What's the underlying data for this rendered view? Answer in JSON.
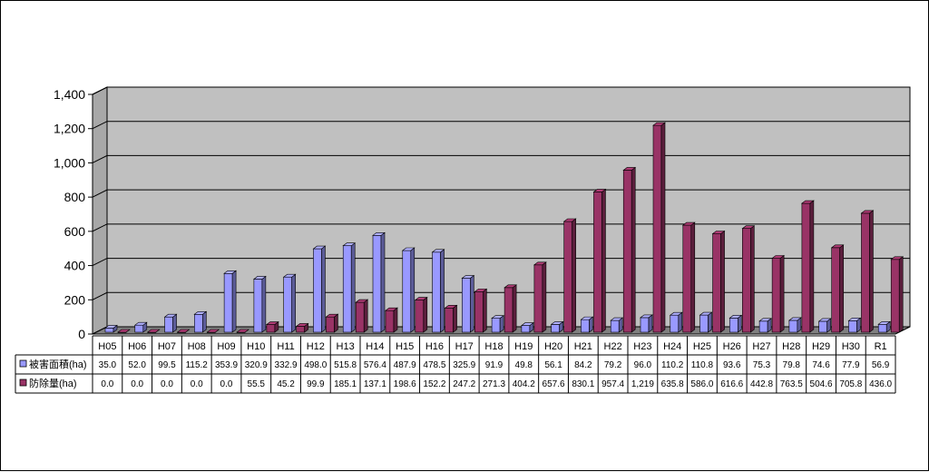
{
  "chart_data": {
    "type": "bar",
    "title": "",
    "xlabel": "",
    "ylabel": "",
    "ylim": [
      0,
      1400
    ],
    "yticks": [
      0,
      200,
      400,
      600,
      800,
      1000,
      1200,
      1400
    ],
    "ytick_labels": [
      "0",
      "200",
      "400",
      "600",
      "800",
      "1,000",
      "1,200",
      "1,400"
    ],
    "grid": true,
    "legend": "data-table-left",
    "categories": [
      "H05",
      "H06",
      "H07",
      "H08",
      "H09",
      "H10",
      "H11",
      "H12",
      "H13",
      "H14",
      "H15",
      "H16",
      "H17",
      "H18",
      "H19",
      "H20",
      "H21",
      "H22",
      "H23",
      "H24",
      "H25",
      "H26",
      "H27",
      "H28",
      "H29",
      "H30",
      "R1"
    ],
    "series": [
      {
        "name": "被害面積(ha)",
        "color": "#9999ff",
        "values": [
          35.0,
          52.0,
          99.5,
          115.2,
          353.9,
          320.9,
          332.9,
          498.0,
          515.8,
          576.4,
          487.9,
          478.5,
          325.9,
          91.9,
          49.8,
          56.1,
          84.2,
          79.2,
          96.0,
          110.2,
          110.8,
          93.6,
          75.3,
          79.8,
          74.6,
          77.9,
          56.9
        ],
        "labels": [
          "35.0",
          "52.0",
          "99.5",
          "115.2",
          "353.9",
          "320.9",
          "332.9",
          "498.0",
          "515.8",
          "576.4",
          "487.9",
          "478.5",
          "325.9",
          "91.9",
          "49.8",
          "56.1",
          "84.2",
          "79.2",
          "96.0",
          "110.2",
          "110.8",
          "93.6",
          "75.3",
          "79.8",
          "74.6",
          "77.9",
          "56.9"
        ]
      },
      {
        "name": "防除量(ha)",
        "color": "#993366",
        "values": [
          0.0,
          0.0,
          0.0,
          0.0,
          0.0,
          55.5,
          45.2,
          99.9,
          185.1,
          137.1,
          198.6,
          152.2,
          247.2,
          271.3,
          404.2,
          657.6,
          830.1,
          957.4,
          1219,
          635.8,
          586.0,
          616.6,
          442.8,
          763.5,
          504.6,
          705.8,
          436.0
        ],
        "labels": [
          "0.0",
          "0.0",
          "0.0",
          "0.0",
          "0.0",
          "55.5",
          "45.2",
          "99.9",
          "185.1",
          "137.1",
          "198.6",
          "152.2",
          "247.2",
          "271.3",
          "404.2",
          "657.6",
          "830.1",
          "957.4",
          "1,219",
          "635.8",
          "586.0",
          "616.6",
          "442.8",
          "763.5",
          "504.6",
          "705.8",
          "436.0"
        ]
      }
    ],
    "colors": {
      "plot_wall": "#c0c0c0",
      "floor": "#808080",
      "gridline": "#000000"
    }
  }
}
